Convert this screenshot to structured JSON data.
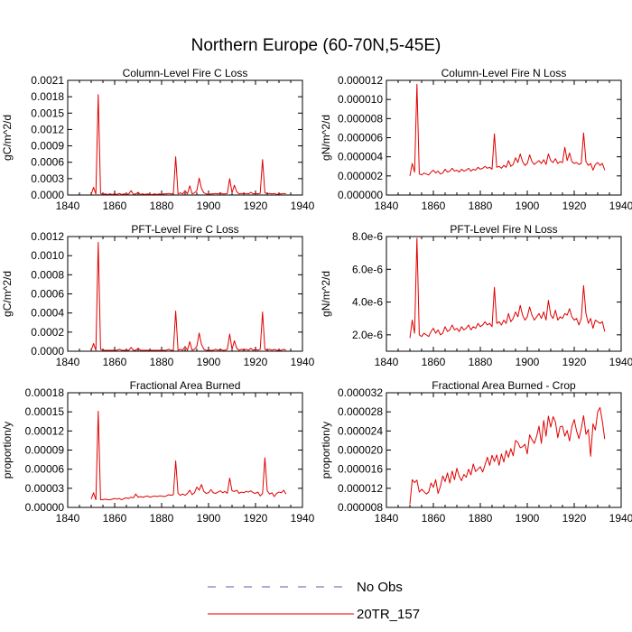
{
  "figure": {
    "title": "Northern Europe (60-70N,5-45E)",
    "legend": [
      {
        "label": "No Obs",
        "color": "#5a5aa8",
        "dash": true
      },
      {
        "label": "20TR_157",
        "color": "#e00000",
        "dash": false
      }
    ]
  },
  "chart_data": [
    {
      "type": "line",
      "title": "Column-Level Fire C Loss",
      "ylabel": "gC/m^2/d",
      "xlim": [
        1840,
        1940
      ],
      "ylim": [
        0,
        0.0021
      ],
      "xticks": [
        "1840",
        "1860",
        "1880",
        "1900",
        "1920",
        "1940"
      ],
      "yticks": [
        "0.0000",
        "0.0003",
        "0.0006",
        "0.0009",
        "0.0012",
        "0.0015",
        "0.0018",
        "0.0021"
      ],
      "x0": 1850,
      "series": [
        {
          "name": "20TR_157",
          "values": [
            1e-05,
            0.00014,
            2e-05,
            0.00184,
            3e-05,
            1e-05,
            2e-05,
            1e-05,
            2e-05,
            1e-05,
            2e-05,
            1e-05,
            3e-05,
            1e-05,
            2e-05,
            1e-05,
            2e-05,
            8e-05,
            1e-05,
            2e-05,
            5e-05,
            1e-05,
            2e-05,
            1e-05,
            2e-05,
            1e-05,
            1e-05,
            2e-05,
            1e-05,
            2e-05,
            1e-05,
            2e-05,
            2e-05,
            3e-05,
            2e-05,
            2e-05,
            0.0007,
            2e-05,
            4e-05,
            2e-05,
            8e-05,
            2e-05,
            0.00017,
            2e-05,
            4e-05,
            8e-05,
            0.00031,
            0.00012,
            4e-05,
            2e-05,
            1e-05,
            2e-05,
            2e-05,
            3e-05,
            2e-05,
            4e-05,
            2e-05,
            2e-05,
            3e-05,
            0.0003,
            4e-05,
            0.00018,
            6e-05,
            2e-05,
            3e-05,
            2e-05,
            3e-05,
            2e-05,
            5e-05,
            2e-05,
            3e-05,
            2e-05,
            3e-05,
            0.00065,
            4e-05,
            2e-05,
            3e-05,
            2e-05,
            3e-05,
            1e-05,
            2e-05,
            2e-05,
            3e-05,
            2e-05
          ]
        }
      ]
    },
    {
      "type": "line",
      "title": "Column-Level Fire N Loss",
      "ylabel": "gN/m^2/d",
      "xlim": [
        1840,
        1940
      ],
      "ylim": [
        0,
        1.2e-05
      ],
      "xticks": [
        "1840",
        "1860",
        "1880",
        "1900",
        "1920",
        "1940"
      ],
      "yticks": [
        "0.000000",
        "0.000002",
        "0.000004",
        "0.000006",
        "0.000008",
        "0.000010",
        "0.000012"
      ],
      "x0": 1850,
      "series": [
        {
          "name": "20TR_157",
          "values": [
            2e-06,
            3.3e-06,
            2.4e-06,
            1.16e-05,
            2.2e-06,
            2.1e-06,
            2.3e-06,
            2.2e-06,
            2.1e-06,
            2.4e-06,
            2.6e-06,
            2.3e-06,
            2.5e-06,
            2.2e-06,
            2.3e-06,
            2.7e-06,
            2.4e-06,
            2.5e-06,
            2.8e-06,
            2.5e-06,
            2.6e-06,
            2.4e-06,
            2.7e-06,
            2.5e-06,
            2.6e-06,
            2.8e-06,
            2.5e-06,
            2.7e-06,
            2.6e-06,
            2.9e-06,
            2.7e-06,
            2.8e-06,
            3e-06,
            2.8e-06,
            2.9e-06,
            2.7e-06,
            6.4e-06,
            2.9e-06,
            3e-06,
            2.8e-06,
            3.1e-06,
            2.9e-06,
            3.6e-06,
            3e-06,
            3.2e-06,
            3.9e-06,
            3.4e-06,
            4.3e-06,
            3.5e-06,
            3.1e-06,
            3.3e-06,
            4.2e-06,
            3.5e-06,
            3.2e-06,
            3.4e-06,
            3.6e-06,
            3.3e-06,
            3.7e-06,
            3.2e-06,
            4.3e-06,
            3.6e-06,
            3.4e-06,
            3.8e-06,
            3.3e-06,
            3.5e-06,
            3.4e-06,
            5e-06,
            3.6e-06,
            4.4e-06,
            3.5e-06,
            3.3e-06,
            3.4e-06,
            3.2e-06,
            3.3e-06,
            6.5e-06,
            3.5e-06,
            3.1e-06,
            3.3e-06,
            2.6e-06,
            3.2e-06,
            3.4e-06,
            3.1e-06,
            3.3e-06,
            2.6e-06
          ]
        }
      ]
    },
    {
      "type": "line",
      "title": "PFT-Level Fire C Loss",
      "ylabel": "gC/m^2/d",
      "xlim": [
        1840,
        1940
      ],
      "ylim": [
        0,
        0.0012
      ],
      "xticks": [
        "1840",
        "1860",
        "1880",
        "1900",
        "1920",
        "1940"
      ],
      "yticks": [
        "0.0000",
        "0.0002",
        "0.0004",
        "0.0006",
        "0.0008",
        "0.0010",
        "0.0012"
      ],
      "x0": 1850,
      "series": [
        {
          "name": "20TR_157",
          "values": [
            1e-05,
            8e-05,
            1e-05,
            0.00114,
            2e-05,
            1e-05,
            1e-05,
            1e-05,
            1e-05,
            1e-05,
            1e-05,
            1e-05,
            2e-05,
            1e-05,
            1e-05,
            1e-05,
            1e-05,
            4e-05,
            1e-05,
            1e-05,
            3e-05,
            1e-05,
            1e-05,
            1e-05,
            1e-05,
            1e-05,
            1e-05,
            1e-05,
            1e-05,
            1e-05,
            1e-05,
            1e-05,
            1e-05,
            2e-05,
            1e-05,
            1e-05,
            0.00042,
            1e-05,
            2e-05,
            1e-05,
            5e-05,
            1e-05,
            0.0001,
            1e-05,
            2e-05,
            5e-05,
            0.00019,
            7e-05,
            2e-05,
            1e-05,
            1e-05,
            1e-05,
            1e-05,
            2e-05,
            1e-05,
            2e-05,
            1e-05,
            1e-05,
            2e-05,
            0.00018,
            2e-05,
            0.00011,
            3e-05,
            1e-05,
            2e-05,
            1e-05,
            2e-05,
            1e-05,
            3e-05,
            1e-05,
            2e-05,
            1e-05,
            2e-05,
            0.00041,
            2e-05,
            1e-05,
            2e-05,
            1e-05,
            2e-05,
            1e-05,
            1e-05,
            1e-05,
            2e-05,
            1e-05
          ]
        }
      ]
    },
    {
      "type": "line",
      "title": "PFT-Level Fire N Loss",
      "ylabel": "gN/m^2/d",
      "xlim": [
        1840,
        1940
      ],
      "ylim": [
        1e-06,
        8e-06
      ],
      "xticks": [
        "1840",
        "1860",
        "1880",
        "1900",
        "1920",
        "1940"
      ],
      "yticks": [
        "2.0e-6",
        "4.0e-6",
        "6.0e-6",
        "8.0e-6"
      ],
      "ytick_values": [
        2e-06,
        4e-06,
        6e-06,
        8e-06
      ],
      "x0": 1850,
      "series": [
        {
          "name": "20TR_157",
          "values": [
            1.8e-06,
            2.9e-06,
            2.1e-06,
            7.9e-06,
            2e-06,
            1.9e-06,
            2.1e-06,
            2e-06,
            1.9e-06,
            2.2e-06,
            2.4e-06,
            2.1e-06,
            2.3e-06,
            2e-06,
            2.1e-06,
            2.5e-06,
            2.2e-06,
            2.3e-06,
            2.6e-06,
            2.3e-06,
            2.4e-06,
            2.2e-06,
            2.5e-06,
            2.3e-06,
            2.4e-06,
            2.6e-06,
            2.3e-06,
            2.5e-06,
            2.4e-06,
            2.7e-06,
            2.5e-06,
            2.6e-06,
            2.8e-06,
            2.6e-06,
            2.7e-06,
            2.5e-06,
            4.9e-06,
            2.7e-06,
            2.8e-06,
            2.6e-06,
            2.9e-06,
            2.7e-06,
            3.3e-06,
            2.8e-06,
            3e-06,
            3.4e-06,
            3.1e-06,
            3.8e-06,
            3.2e-06,
            2.9e-06,
            3.1e-06,
            3.7e-06,
            3.2e-06,
            2.9e-06,
            3.1e-06,
            3.3e-06,
            3e-06,
            3.4e-06,
            2.9e-06,
            4.1e-06,
            3.2e-06,
            3e-06,
            3.5e-06,
            2.9e-06,
            3.1e-06,
            3e-06,
            3.3e-06,
            3.2e-06,
            3.6e-06,
            3.1e-06,
            2.9e-06,
            3e-06,
            2.6e-06,
            3e-06,
            5e-06,
            3.3e-06,
            2.7e-06,
            3e-06,
            2.4e-06,
            2.9e-06,
            2.8e-06,
            2.7e-06,
            2.8e-06,
            2.2e-06
          ]
        }
      ]
    },
    {
      "type": "line",
      "title": "Fractional Area Burned",
      "ylabel": "proportion/y",
      "xlim": [
        1840,
        1940
      ],
      "ylim": [
        0,
        0.00018
      ],
      "xticks": [
        "1840",
        "1860",
        "1880",
        "1900",
        "1920",
        "1940"
      ],
      "yticks": [
        "0.00000",
        "0.00003",
        "0.00006",
        "0.00009",
        "0.00012",
        "0.00015",
        "0.00018"
      ],
      "x0": 1850,
      "series": [
        {
          "name": "20TR_157",
          "values": [
            1.3e-05,
            2.3e-05,
            1.2e-05,
            0.000151,
            1.2e-05,
            1.2e-05,
            1.3e-05,
            1.2e-05,
            1.2e-05,
            1.3e-05,
            1.4e-05,
            1.3e-05,
            1.4e-05,
            1.2e-05,
            1.4e-05,
            1.5e-05,
            1.4e-05,
            1.6e-05,
            1.5e-05,
            2.1e-05,
            1.6e-05,
            1.7e-05,
            1.6e-05,
            1.7e-05,
            1.8e-05,
            1.6e-05,
            1.7e-05,
            1.8e-05,
            1.7e-05,
            1.8e-05,
            1.8e-05,
            1.7e-05,
            1.8e-05,
            2e-05,
            1.9e-05,
            2e-05,
            7.3e-05,
            2.2e-05,
            1.9e-05,
            2.1e-05,
            1.9e-05,
            2.2e-05,
            2.7e-05,
            2e-05,
            2.3e-05,
            3.2e-05,
            2.7e-05,
            3.6e-05,
            2.5e-05,
            2.2e-05,
            2.3e-05,
            2.8e-05,
            2.3e-05,
            2.2e-05,
            2.4e-05,
            2.6e-05,
            2.3e-05,
            2.5e-05,
            2.2e-05,
            4.6e-05,
            2.6e-05,
            2.5e-05,
            2.7e-05,
            2.2e-05,
            2.4e-05,
            2.3e-05,
            2.5e-05,
            2.4e-05,
            2.6e-05,
            2.3e-05,
            2.2e-05,
            2.4e-05,
            1.8e-05,
            2.2e-05,
            7.8e-05,
            2.6e-05,
            2.1e-05,
            2.3e-05,
            1.7e-05,
            2.2e-05,
            2.4e-05,
            2.3e-05,
            2.7e-05,
            2.1e-05
          ]
        }
      ]
    },
    {
      "type": "line",
      "title": "Fractional Area Burned - Crop",
      "ylabel": "proportion/y",
      "xlim": [
        1840,
        1940
      ],
      "ylim": [
        8e-06,
        3.2e-05
      ],
      "xticks": [
        "1840",
        "1860",
        "1880",
        "1900",
        "1920",
        "1940"
      ],
      "yticks": [
        "0.000008",
        "0.000012",
        "0.000016",
        "0.000020",
        "0.000024",
        "0.000028",
        "0.000032"
      ],
      "x0": 1850,
      "series": [
        {
          "name": "20TR_157",
          "values": [
            8.7e-06,
            1.38e-05,
            1.32e-05,
            1.37e-05,
            1.12e-05,
            1.18e-05,
            1.13e-05,
            1.08e-05,
            1.12e-05,
            1.31e-05,
            1.22e-05,
            1.38e-05,
            1.09e-05,
            1.24e-05,
            1.46e-05,
            1.34e-05,
            1.52e-05,
            1.31e-05,
            1.56e-05,
            1.38e-05,
            1.62e-05,
            1.45e-05,
            1.36e-05,
            1.49e-05,
            1.43e-05,
            1.6e-05,
            1.48e-05,
            1.71e-05,
            1.55e-05,
            1.6e-05,
            1.65e-05,
            1.54e-05,
            1.69e-05,
            1.85e-05,
            1.68e-05,
            1.89e-05,
            1.76e-05,
            1.9e-05,
            1.68e-05,
            1.92e-05,
            1.75e-05,
            1.99e-05,
            1.85e-05,
            2.03e-05,
            1.88e-05,
            2.2e-05,
            2.16e-05,
            2.05e-05,
            2.07e-05,
            2.12e-05,
            1.92e-05,
            2.32e-05,
            2.22e-05,
            2.14e-05,
            2.29e-05,
            2.5e-05,
            2.14e-05,
            2.62e-05,
            2.29e-05,
            2.71e-05,
            2.48e-05,
            2.7e-05,
            2.59e-05,
            2.26e-05,
            2.49e-05,
            2.5e-05,
            2.29e-05,
            2.41e-05,
            2.19e-05,
            2.49e-05,
            2.64e-05,
            2.4e-05,
            2.24e-05,
            2.45e-05,
            2.72e-05,
            2.33e-05,
            2.43e-05,
            1.87e-05,
            2.55e-05,
            2.42e-05,
            2.8e-05,
            2.89e-05,
            2.6e-05,
            2.23e-05
          ]
        }
      ]
    }
  ]
}
